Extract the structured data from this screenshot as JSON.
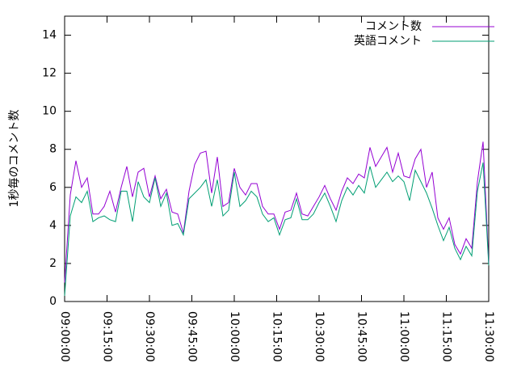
{
  "chart_data": {
    "type": "line",
    "ylabel": "1秒毎のコメント数",
    "x": [
      "09:00:00",
      "09:02:00",
      "09:04:00",
      "09:06:00",
      "09:08:00",
      "09:10:00",
      "09:12:00",
      "09:14:00",
      "09:16:00",
      "09:18:00",
      "09:20:00",
      "09:22:00",
      "09:24:00",
      "09:26:00",
      "09:28:00",
      "09:30:00",
      "09:32:00",
      "09:34:00",
      "09:36:00",
      "09:38:00",
      "09:40:00",
      "09:42:00",
      "09:44:00",
      "09:46:00",
      "09:48:00",
      "09:50:00",
      "09:52:00",
      "09:54:00",
      "09:56:00",
      "09:58:00",
      "10:00:00",
      "10:02:00",
      "10:04:00",
      "10:06:00",
      "10:08:00",
      "10:10:00",
      "10:12:00",
      "10:14:00",
      "10:16:00",
      "10:18:00",
      "10:20:00",
      "10:22:00",
      "10:24:00",
      "10:26:00",
      "10:28:00",
      "10:30:00",
      "10:32:00",
      "10:34:00",
      "10:36:00",
      "10:38:00",
      "10:40:00",
      "10:42:00",
      "10:44:00",
      "10:46:00",
      "10:48:00",
      "10:50:00",
      "10:52:00",
      "10:54:00",
      "10:56:00",
      "10:58:00",
      "11:00:00",
      "11:02:00",
      "11:04:00",
      "11:06:00",
      "11:08:00",
      "11:10:00",
      "11:12:00",
      "11:14:00",
      "11:16:00",
      "11:18:00",
      "11:20:00",
      "11:22:00",
      "11:24:00",
      "11:26:00",
      "11:28:00",
      "11:30:00"
    ],
    "series": [
      {
        "name": "コメント数",
        "color": "#9400d3",
        "values": [
          1.0,
          5.6,
          7.4,
          6.0,
          6.5,
          4.6,
          4.6,
          5.0,
          5.8,
          4.7,
          6.0,
          7.1,
          5.5,
          6.8,
          7.0,
          5.5,
          6.6,
          5.4,
          5.9,
          4.7,
          4.6,
          3.6,
          5.8,
          7.2,
          7.8,
          7.9,
          5.7,
          7.6,
          5.0,
          5.2,
          7.0,
          6.0,
          5.6,
          6.2,
          6.2,
          5.0,
          4.6,
          4.6,
          3.8,
          4.7,
          4.8,
          5.7,
          4.6,
          4.5,
          5.0,
          5.5,
          6.1,
          5.4,
          4.8,
          5.8,
          6.5,
          6.2,
          6.7,
          6.5,
          8.1,
          7.1,
          7.6,
          8.1,
          6.8,
          7.8,
          6.6,
          6.5,
          7.5,
          8.0,
          6.0,
          6.8,
          4.4,
          3.8,
          4.4,
          3.0,
          2.5,
          3.3,
          2.8,
          6.3,
          8.4,
          2.0
        ]
      },
      {
        "name": "英語コメント",
        "color": "#009e73",
        "values": [
          0.3,
          4.5,
          5.5,
          5.2,
          5.8,
          4.2,
          4.4,
          4.5,
          4.3,
          4.2,
          5.8,
          5.8,
          4.2,
          6.3,
          5.5,
          5.2,
          6.5,
          5.0,
          5.7,
          4.0,
          4.1,
          3.5,
          5.4,
          5.7,
          6.0,
          6.4,
          5.0,
          6.4,
          4.5,
          4.8,
          6.8,
          5.0,
          5.3,
          5.8,
          5.5,
          4.6,
          4.2,
          4.4,
          3.5,
          4.3,
          4.4,
          5.4,
          4.3,
          4.3,
          4.6,
          5.2,
          5.7,
          5.0,
          4.2,
          5.3,
          6.0,
          5.6,
          6.1,
          5.7,
          7.1,
          6.0,
          6.4,
          6.8,
          6.3,
          6.6,
          6.3,
          5.3,
          6.9,
          6.3,
          5.7,
          4.9,
          4.0,
          3.2,
          3.9,
          2.8,
          2.2,
          2.9,
          2.4,
          5.8,
          7.3,
          1.9
        ]
      }
    ],
    "xlim": [
      "09:00:00",
      "11:30:00"
    ],
    "xticks": [
      "09:00:00",
      "09:15:00",
      "09:30:00",
      "09:45:00",
      "10:00:00",
      "10:15:00",
      "10:30:00",
      "10:45:00",
      "11:00:00",
      "11:15:00",
      "11:30:00"
    ],
    "ylim": [
      0,
      15
    ],
    "yticks": [
      0,
      2,
      4,
      6,
      8,
      10,
      12,
      14
    ],
    "legend": "top-right"
  }
}
